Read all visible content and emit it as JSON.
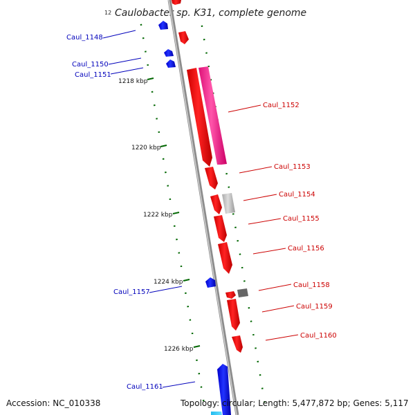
{
  "title": "Caulobacter sp. K31, complete genome",
  "title_prefix_fragment": "12",
  "footer": {
    "accession": "Accession: NC_010338",
    "summary": "Topology: circular; Length: 5,477,872 bp; Genes: 5,117"
  },
  "ticks": [
    {
      "label": "1218 kbp"
    },
    {
      "label": "1220 kbp"
    },
    {
      "label": "1222 kbp"
    },
    {
      "label": "1224 kbp"
    },
    {
      "label": "1226 kbp"
    }
  ],
  "genes_forward": [
    {
      "label": "Caul_1152"
    },
    {
      "label": "Caul_1153"
    },
    {
      "label": "Caul_1154"
    },
    {
      "label": "Caul_1155"
    },
    {
      "label": "Caul_1156"
    },
    {
      "label": "Caul_1158"
    },
    {
      "label": "Caul_1159"
    },
    {
      "label": "Caul_1160"
    }
  ],
  "genes_reverse": [
    {
      "label": "Caul_1148"
    },
    {
      "label": "Caul_1150"
    },
    {
      "label": "Caul_1151"
    },
    {
      "label": "Caul_1157"
    },
    {
      "label": "Caul_1161"
    }
  ],
  "colors": {
    "backbone": "#888888",
    "forward_cds": "#ff0000",
    "reverse_cds": "#0000ff",
    "pseudo_magenta": "#ff3399",
    "grey_feature": "#bbbbbb",
    "dark_grey_feature": "#666666",
    "cyan_feature": "#33ccff",
    "tick_green": "#006600",
    "fwd_label": "#cc0000",
    "rev_label": "#0000bb"
  }
}
